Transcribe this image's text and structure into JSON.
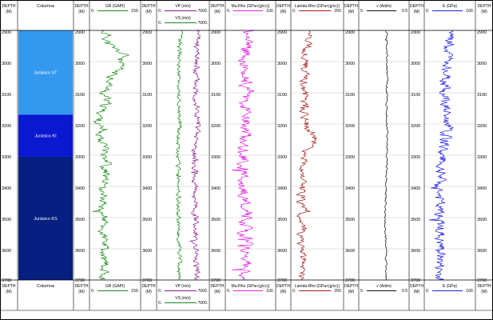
{
  "chart_data": {
    "type": "line",
    "depth_axis": {
      "label": "DEPTH",
      "unit": "(M)",
      "ticks": [
        "2900",
        "3000",
        "3100",
        "3200",
        "3300",
        "3400",
        "3500",
        "3600",
        "3700"
      ],
      "range": [
        2900,
        3700
      ]
    },
    "column": {
      "title": "Columna",
      "zones": [
        {
          "name": "Jurásico ST",
          "top": 2900,
          "base": 3170,
          "color": "#3399ee"
        },
        {
          "name": "Jurásico KI",
          "top": 3170,
          "base": 3305,
          "color": "#0a18d0"
        },
        {
          "name": "Jurásico KS",
          "top": 3305,
          "base": 3700,
          "color": "#061f80"
        }
      ]
    },
    "tracks": [
      {
        "id": "gr",
        "curves": [
          {
            "name": "GR (GAPI)",
            "min": "0.",
            "max": "150.",
            "range": [
              0,
              150
            ],
            "color": "#1a8a1a",
            "profile": [
              [
                2900,
                40
              ],
              [
                2920,
                55
              ],
              [
                2940,
                50
              ],
              [
                2960,
                75
              ],
              [
                2980,
                105
              ],
              [
                3000,
                85
              ],
              [
                3020,
                90
              ],
              [
                3040,
                70
              ],
              [
                3060,
                65
              ],
              [
                3080,
                55
              ],
              [
                3100,
                40
              ],
              [
                3120,
                50
              ],
              [
                3140,
                45
              ],
              [
                3160,
                35
              ],
              [
                3180,
                30
              ],
              [
                3200,
                25
              ],
              [
                3220,
                30
              ],
              [
                3240,
                35
              ],
              [
                3260,
                40
              ],
              [
                3280,
                50
              ],
              [
                3300,
                45
              ],
              [
                3320,
                55
              ],
              [
                3340,
                45
              ],
              [
                3360,
                50
              ],
              [
                3380,
                40
              ],
              [
                3400,
                35
              ],
              [
                3420,
                40
              ],
              [
                3440,
                45
              ],
              [
                3460,
                35
              ],
              [
                3480,
                40
              ],
              [
                3500,
                45
              ],
              [
                3520,
                40
              ],
              [
                3540,
                35
              ],
              [
                3560,
                40
              ],
              [
                3580,
                45
              ],
              [
                3600,
                40
              ],
              [
                3620,
                35
              ],
              [
                3640,
                45
              ],
              [
                3660,
                40
              ],
              [
                3680,
                45
              ],
              [
                3700,
                40
              ]
            ],
            "noise": 12,
            "seed": 11
          }
        ]
      },
      {
        "id": "vp-vs",
        "curves": [
          {
            "name": "VP (m/s)",
            "min": "0.",
            "max": "7000.",
            "range": [
              0,
              7000
            ],
            "color": "#8a1a8a",
            "profile": [
              [
                2900,
                5500
              ],
              [
                3000,
                5200
              ],
              [
                3100,
                5300
              ],
              [
                3200,
                5400
              ],
              [
                3300,
                5000
              ],
              [
                3400,
                5100
              ],
              [
                3500,
                5200
              ],
              [
                3600,
                5300
              ],
              [
                3700,
                5300
              ]
            ],
            "noise": 380,
            "seed": 23
          },
          {
            "name": "VS (m/s)",
            "min": "0.",
            "max": "7000.",
            "range": [
              0,
              7000
            ],
            "color": "#1a8a1a",
            "profile": [
              [
                2900,
                3100
              ],
              [
                3000,
                3000
              ],
              [
                3100,
                3000
              ],
              [
                3200,
                3100
              ],
              [
                3300,
                2800
              ],
              [
                3400,
                2900
              ],
              [
                3500,
                2900
              ],
              [
                3600,
                3000
              ],
              [
                3700,
                3000
              ]
            ],
            "noise": 260,
            "seed": 37
          }
        ]
      },
      {
        "id": "mu-rho",
        "curves": [
          {
            "name": "Mu-Rho (GPa+(g/cc))",
            "min": "0.",
            "max": "100.",
            "range": [
              0,
              100
            ],
            "color": "#e21ae2",
            "profile": [
              [
                2900,
                45
              ],
              [
                3000,
                40
              ],
              [
                3100,
                42
              ],
              [
                3200,
                40
              ],
              [
                3300,
                35
              ],
              [
                3400,
                38
              ],
              [
                3500,
                40
              ],
              [
                3600,
                40
              ],
              [
                3700,
                42
              ]
            ],
            "noise": 11,
            "seed": 47
          }
        ]
      },
      {
        "id": "lambda-rho",
        "curves": [
          {
            "name": "Lamda-Rho (GPa+(g/cc))",
            "min": "0.",
            "max": "200.",
            "range": [
              0,
              200
            ],
            "color": "#a01a1a",
            "profile": [
              [
                2900,
                70
              ],
              [
                3000,
                55
              ],
              [
                3100,
                50
              ],
              [
                3200,
                55
              ],
              [
                3250,
                100
              ],
              [
                3300,
                45
              ],
              [
                3400,
                40
              ],
              [
                3500,
                40
              ],
              [
                3600,
                40
              ],
              [
                3700,
                42
              ]
            ],
            "noise": 14,
            "seed": 59
          }
        ]
      },
      {
        "id": "nu",
        "curves": [
          {
            "name": "v (Adim)",
            "min": "0.",
            "max": "0.5",
            "range": [
              0,
              0.5
            ],
            "color": "#111111",
            "profile": [
              [
                2900,
                0.28
              ],
              [
                3300,
                0.28
              ],
              [
                3400,
                0.27
              ],
              [
                3500,
                0.26
              ],
              [
                3600,
                0.27
              ],
              [
                3700,
                0.27
              ]
            ],
            "noise": 0.008,
            "seed": 71
          }
        ]
      },
      {
        "id": "young",
        "curves": [
          {
            "name": "E (GPa)",
            "min": "0.",
            "max": "100.",
            "range": [
              0,
              100
            ],
            "color": "#1a1ae2",
            "profile": [
              [
                2900,
                55
              ],
              [
                3000,
                45
              ],
              [
                3100,
                40
              ],
              [
                3200,
                45
              ],
              [
                3300,
                35
              ],
              [
                3400,
                30
              ],
              [
                3500,
                30
              ],
              [
                3600,
                32
              ],
              [
                3700,
                30
              ]
            ],
            "noise": 10,
            "seed": 83
          }
        ]
      }
    ]
  }
}
